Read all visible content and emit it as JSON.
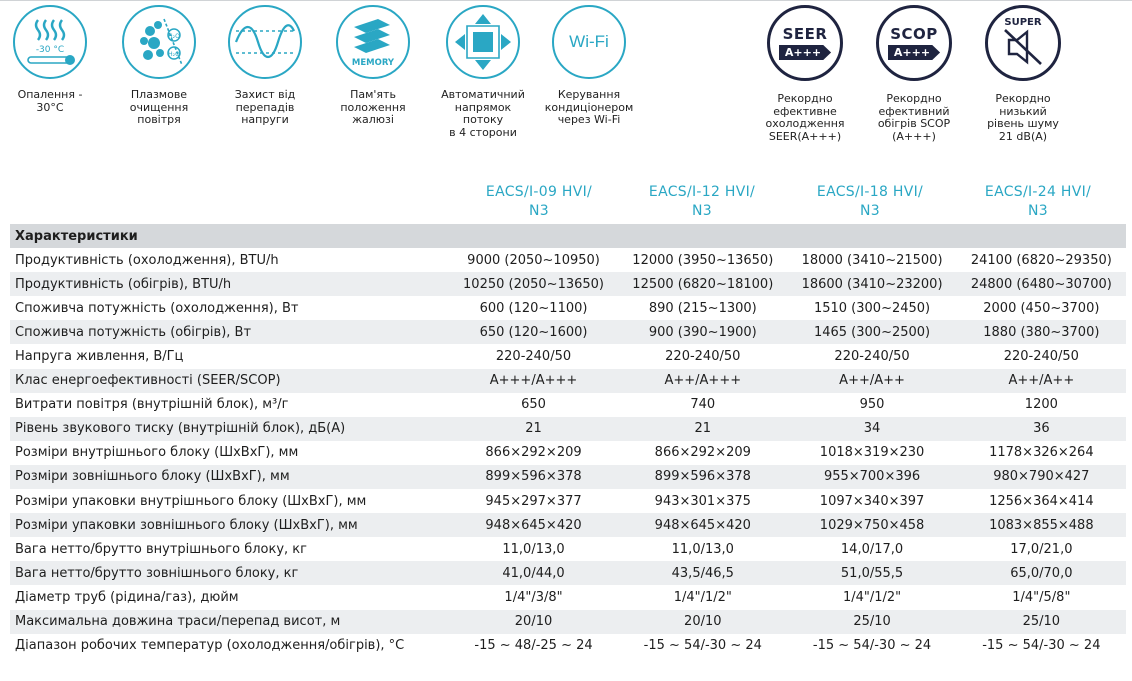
{
  "features": [
    {
      "name": "heating-icon",
      "inner": "-30 °C",
      "caption": "Опалення -\n30°С"
    },
    {
      "name": "plasma-icon",
      "inner": "",
      "caption": "Плазмове\nочищення\nповітря"
    },
    {
      "name": "voltage-icon",
      "inner": "",
      "caption": "Захист від\nперепадів\nнапруги"
    },
    {
      "name": "memory-icon",
      "inner": "MEMORY",
      "caption": "Пам'ять\nположення\nжалюзі"
    },
    {
      "name": "airflow-icon",
      "inner": "",
      "caption": "Автоматичний\nнапрямок потоку\nв 4 сторони"
    },
    {
      "name": "wifi-icon",
      "inner": "Wi-Fi",
      "caption": "Керування\nкондиціонером\nчерез Wi-Fi"
    }
  ],
  "badges": [
    {
      "name": "seer-icon",
      "top": "SEER",
      "bar": "A+++",
      "caption": "Рекордно\nефективне\nохолодження\nSEER(A+++)"
    },
    {
      "name": "scop-icon",
      "top": "SCOP",
      "bar": "A+++",
      "caption": "Рекордно\nефективний\nобігрів SCOP\n(A+++)"
    },
    {
      "name": "super-silent-icon",
      "top": "SUPER",
      "bar": "",
      "caption": "Рекордно\nнизький\nрівень шуму\n21 dB(A)"
    }
  ],
  "models": [
    {
      "line1": "EACS/I-09 HVI/",
      "line2": "N3"
    },
    {
      "line1": "EACS/I-12 HVI/",
      "line2": "N3"
    },
    {
      "line1": "EACS/I-18 HVI/",
      "line2": "N3"
    },
    {
      "line1": "EACS/I-24 HVI/",
      "line2": "N3"
    }
  ],
  "table": {
    "header": "Характеристики",
    "rows": [
      {
        "label": "Продуктивність (охолодження), BTU/h",
        "values": [
          "9000 (2050~10950)",
          "12000 (3950~13650)",
          "18000 (3410~21500)",
          "24100 (6820~29350)"
        ]
      },
      {
        "label": "Продуктивність (обігрів), BTU/h",
        "values": [
          "10250 (2050~13650)",
          "12500 (6820~18100)",
          "18600 (3410~23200)",
          "24800 (6480~30700)"
        ]
      },
      {
        "label": "Споживча потужність (охолодження), Вт",
        "values": [
          "600 (120~1100)",
          "890 (215~1300)",
          "1510 (300~2450)",
          "2000 (450~3700)"
        ]
      },
      {
        "label": "Споживча потужність (обігрів), Вт",
        "values": [
          "650 (120~1600)",
          "900 (390~1900)",
          "1465 (300~2500)",
          "1880 (380~3700)"
        ]
      },
      {
        "label": "Напруга живлення, В/Гц",
        "values": [
          "220-240/50",
          "220-240/50",
          "220-240/50",
          "220-240/50"
        ]
      },
      {
        "label": "Клас енергоефективності (SEER/SCOP)",
        "values": [
          "A+++/A+++",
          "A++/A+++",
          "A++/A++",
          "A++/A++"
        ]
      },
      {
        "label": "Витрати повітря (внутрішній блок), м³/г",
        "values": [
          "650",
          "740",
          "950",
          "1200"
        ]
      },
      {
        "label": "Рівень звукового тиску (внутрішній блок), дБ(А)",
        "values": [
          "21",
          "21",
          "34",
          "36"
        ]
      },
      {
        "label": "Розміри внутрішнього блоку (ШхВхГ), мм",
        "values": [
          "866×292×209",
          "866×292×209",
          "1018×319×230",
          "1178×326×264"
        ]
      },
      {
        "label": "Розміри зовнішнього блоку (ШхВхГ), мм",
        "values": [
          "899×596×378",
          "899×596×378",
          "955×700×396",
          "980×790×427"
        ]
      },
      {
        "label": "Розміри упаковки внутрішнього блоку (ШхВхГ), мм",
        "values": [
          "945×297×377",
          "943×301×375",
          "1097×340×397",
          "1256×364×414"
        ]
      },
      {
        "label": "Розміри упаковки зовнішнього блоку (ШхВхГ), мм",
        "values": [
          "948×645×420",
          "948×645×420",
          "1029×750×458",
          "1083×855×488"
        ]
      },
      {
        "label": "Вага нетто/брутто внутрішнього блоку, кг",
        "values": [
          "11,0/13,0",
          "11,0/13,0",
          "14,0/17,0",
          "17,0/21,0"
        ]
      },
      {
        "label": "Вага нетто/брутто зовнішнього блоку, кг",
        "values": [
          "41,0/44,0",
          "43,5/46,5",
          "51,0/55,5",
          "65,0/70,0"
        ]
      },
      {
        "label": "Діаметр труб (рідина/газ), дюйм",
        "values": [
          "1/4\"/3/8\"",
          "1/4\"/1/2\"",
          "1/4\"/1/2\"",
          "1/4\"/5/8\""
        ]
      },
      {
        "label": "Максимальна довжина траси/перепад висот, м",
        "values": [
          "20/10",
          "20/10",
          "25/10",
          "25/10"
        ]
      },
      {
        "label": "Діапазон робочих температур (охолодження/обігрів), °С",
        "values": [
          "-15 ~ 48/-25 ~ 24",
          "-15 ~ 54/-30 ~ 24",
          "-15 ~ 54/-30 ~ 24",
          "-15 ~ 54/-30 ~ 24"
        ]
      }
    ]
  },
  "colors": {
    "accent": "#2aa7c4",
    "badge": "#1f2440",
    "shade": "#eceef0",
    "header": "#d5d8db"
  }
}
